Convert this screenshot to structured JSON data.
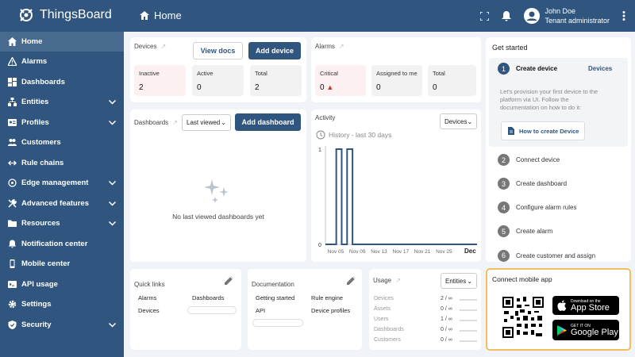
{
  "app": {
    "name": "ThingsBoard"
  },
  "header": {
    "title": "Home",
    "user_name": "John Doe",
    "user_role": "Tenant administrator"
  },
  "sidebar": {
    "items": [
      {
        "label": "Home",
        "icon": "home-icon"
      },
      {
        "label": "Alarms",
        "icon": "warning-icon"
      },
      {
        "label": "Dashboards",
        "icon": "dashboard-icon"
      },
      {
        "label": "Entities",
        "icon": "entities-icon",
        "expandable": true
      },
      {
        "label": "Profiles",
        "icon": "profiles-icon",
        "expandable": true
      },
      {
        "label": "Customers",
        "icon": "customers-icon"
      },
      {
        "label": "Rule chains",
        "icon": "rule-chains-icon"
      },
      {
        "label": "Edge management",
        "icon": "edge-icon",
        "expandable": true
      },
      {
        "label": "Advanced features",
        "icon": "tools-icon",
        "expandable": true
      },
      {
        "label": "Resources",
        "icon": "folder-icon",
        "expandable": true
      },
      {
        "label": "Notification center",
        "icon": "notification-icon"
      },
      {
        "label": "Mobile center",
        "icon": "mobile-icon"
      },
      {
        "label": "API usage",
        "icon": "api-icon"
      },
      {
        "label": "Settings",
        "icon": "gear-icon"
      },
      {
        "label": "Security",
        "icon": "security-icon",
        "expandable": true
      }
    ]
  },
  "devices": {
    "title": "Devices",
    "view_docs": "View docs",
    "add_device": "Add device",
    "stats": [
      {
        "label": "Inactive",
        "value": "2"
      },
      {
        "label": "Active",
        "value": "0"
      },
      {
        "label": "Total",
        "value": "2"
      }
    ]
  },
  "alarms": {
    "title": "Alarms",
    "stats": [
      {
        "label": "Critical",
        "value": "0"
      },
      {
        "label": "Assigned to me",
        "value": "0"
      },
      {
        "label": "Total",
        "value": "0"
      }
    ]
  },
  "dashboards": {
    "title": "Dashboards",
    "filter": "Last viewed",
    "add_button": "Add dashboard",
    "empty": "No last viewed dashboards yet"
  },
  "activity": {
    "title": "Activity",
    "filter": "Devices",
    "history_label": "History - last 30 days"
  },
  "chart_data": {
    "type": "line",
    "x": [
      "Nov 03",
      "Nov 04",
      "Nov 05",
      "Nov 06",
      "Nov 07",
      "Nov 08",
      "Nov 09",
      "Nov 10",
      "Nov 11",
      "Nov 12",
      "Nov 13",
      "Nov 14",
      "Nov 15",
      "Nov 16",
      "Nov 17",
      "Nov 18",
      "Nov 19",
      "Nov 20",
      "Nov 21",
      "Nov 22",
      "Nov 23",
      "Nov 24",
      "Nov 25",
      "Nov 26",
      "Nov 27",
      "Nov 28",
      "Nov 29",
      "Nov 30",
      "Dec 01"
    ],
    "series": [
      {
        "values": [
          0,
          0,
          1,
          0,
          1,
          0,
          0,
          0,
          0,
          0,
          0,
          0,
          0,
          0,
          0,
          0,
          0,
          0,
          0,
          0,
          0,
          0,
          0,
          0,
          0,
          0,
          0,
          0,
          0
        ]
      }
    ],
    "x_tick_labels": [
      "Nov 05",
      "Nov 09",
      "Nov 13",
      "Nov 17",
      "Nov 21",
      "Nov 25",
      "Dec"
    ],
    "y_tick_labels": [
      "0",
      "1"
    ],
    "ylim": [
      0,
      1
    ],
    "color": "#305680"
  },
  "get_started": {
    "title": "Get started",
    "active_step": {
      "num": "1",
      "label": "Create device",
      "link": "Devices",
      "description": "Let's provision your first device to the platform via UI. Follow the documentation on how to do it:",
      "button": "How to create Device"
    },
    "steps": [
      {
        "num": "2",
        "label": "Connect device"
      },
      {
        "num": "3",
        "label": "Create dashboard"
      },
      {
        "num": "4",
        "label": "Configure alarm rules"
      },
      {
        "num": "5",
        "label": "Create alarm"
      },
      {
        "num": "6",
        "label": "Create customer and assign"
      }
    ]
  },
  "quick_links": {
    "title": "Quick links",
    "items": [
      "Alarms",
      "Dashboards",
      "Devices"
    ]
  },
  "documentation": {
    "title": "Documentation",
    "items": [
      "Getting started",
      "Rule engine",
      "API",
      "Device profiles"
    ]
  },
  "usage": {
    "title": "Usage",
    "filter": "Entities",
    "rows": [
      {
        "label": "Devices",
        "value": "2 / ∞"
      },
      {
        "label": "Assets",
        "value": "0 / ∞"
      },
      {
        "label": "Users",
        "value": "1 / ∞"
      },
      {
        "label": "Dashboards",
        "value": "0 / ∞"
      },
      {
        "label": "Customers",
        "value": "0 / ∞"
      }
    ]
  },
  "mobile": {
    "title": "Connect mobile app",
    "app_store_small": "Download on the",
    "app_store": "App Store",
    "google_small": "GET IT ON",
    "google": "Google Play"
  },
  "colors": {
    "primary": "#305680",
    "critical": "#d32f2f",
    "highlight_border": "#f0c060"
  }
}
